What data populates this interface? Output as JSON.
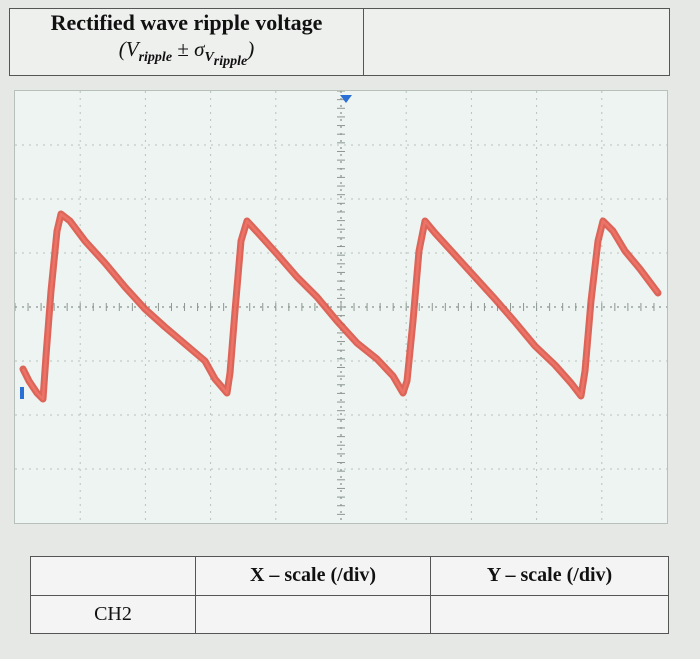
{
  "top_table": {
    "title": "Rectified wave ripple voltage",
    "expr_open": "(V",
    "expr_sub": "ripple",
    "expr_pm": " ± σ",
    "expr_v": "V",
    "expr_sub2": "ripple",
    "expr_close": ")",
    "value": ""
  },
  "scope": {
    "grid_divisions_x": 10,
    "grid_divisions_y": 8,
    "trace_color": "#e05a4e",
    "trigger_marker_color": "#2a6fd6",
    "ground_marker_color": "#2a6fd6"
  },
  "bottom_table": {
    "headers": [
      "",
      "X – scale (/div)",
      "Y – scale (/div)"
    ],
    "row_label": "CH2",
    "x_scale_value": "",
    "y_scale_value": ""
  }
}
